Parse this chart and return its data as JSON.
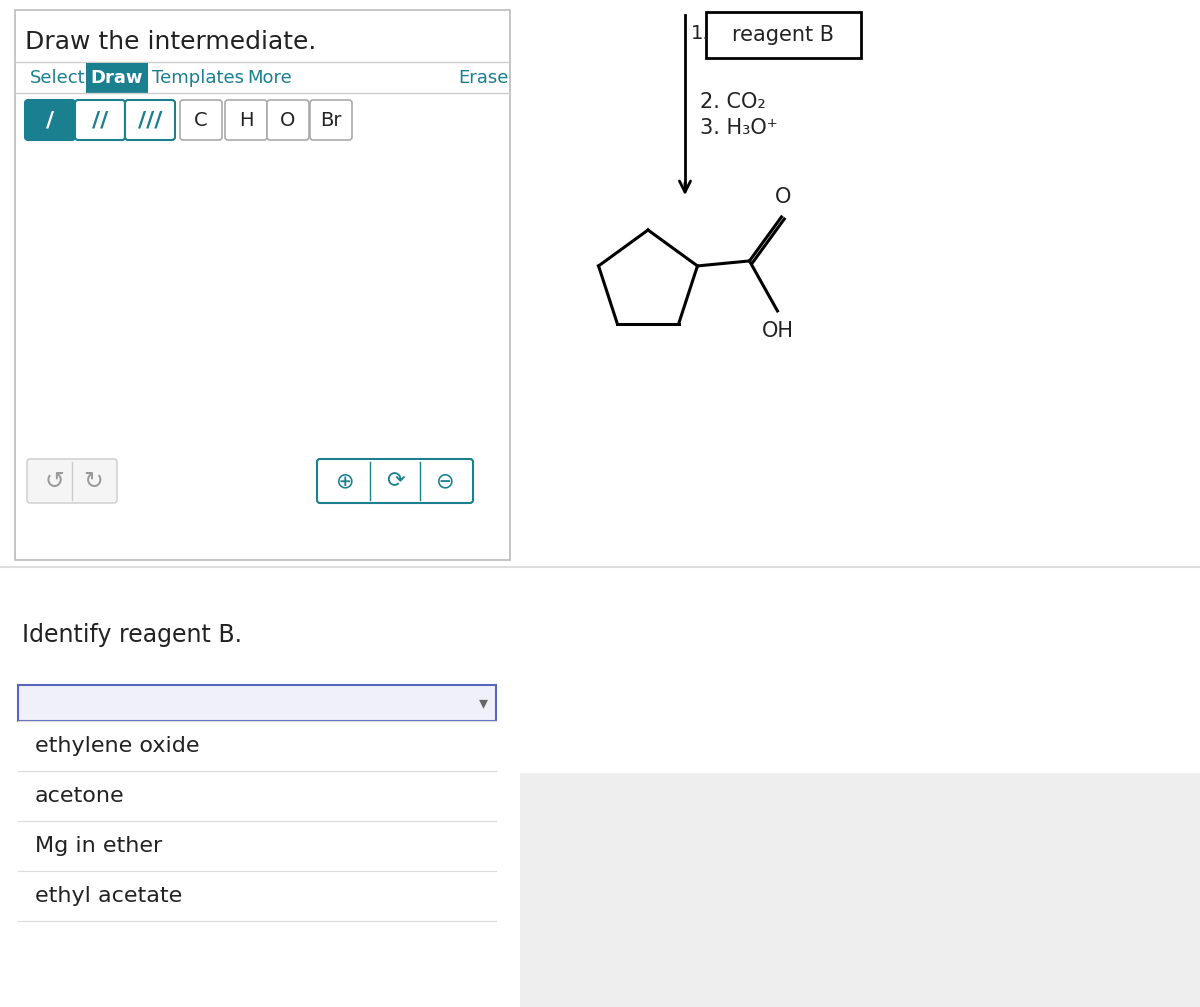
{
  "bg_color": "#ffffff",
  "teal_color": "#1a7f8e",
  "gray_text": "#999999",
  "black_text": "#222222",
  "title": "Draw the intermediate.",
  "tab_items": [
    "Select",
    "Draw",
    "Templates",
    "More"
  ],
  "active_tab": "Draw",
  "erase_label": "Erase",
  "bond_buttons": [
    "/",
    "//",
    "///"
  ],
  "atom_buttons": [
    "C",
    "H",
    "O",
    "Br"
  ],
  "identify_text": "Identify reagent B.",
  "reagent_box_text": "reagent B",
  "step2_label": "2. CO₂",
  "step3_label": "3. H₃O⁺",
  "dropdown_options": [
    "ethylene oxide",
    "acetone",
    "Mg in ether",
    "ethyl acetate"
  ]
}
